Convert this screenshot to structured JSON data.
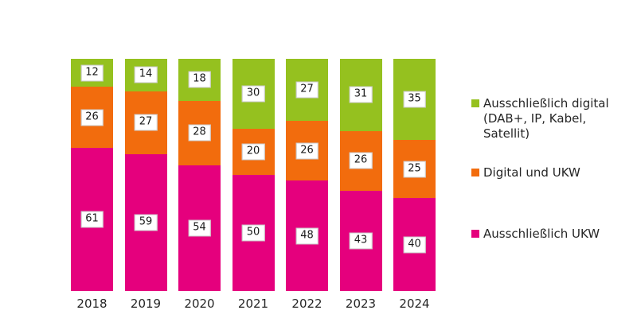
{
  "chart_data": {
    "type": "bar",
    "stacked": true,
    "orientation": "vertical",
    "categories": [
      "2018",
      "2019",
      "2020",
      "2021",
      "2022",
      "2023",
      "2024"
    ],
    "series": [
      {
        "name": "Ausschließlich digital (DAB+, IP, Kabel, Satellit)",
        "color": "#95C11F",
        "values": [
          12,
          14,
          18,
          30,
          27,
          31,
          35
        ]
      },
      {
        "name": "Digital und UKW",
        "color": "#F26C0D",
        "values": [
          26,
          27,
          28,
          20,
          26,
          26,
          25
        ]
      },
      {
        "name": "Ausschließlich UKW",
        "color": "#E5007D",
        "values": [
          61,
          59,
          54,
          50,
          48,
          43,
          40
        ]
      }
    ],
    "title": "",
    "xlabel": "",
    "ylabel": "",
    "ylim": [
      0,
      100
    ],
    "grid": false,
    "value_labels": true,
    "legend_position": "right"
  },
  "legend": {
    "items": [
      {
        "label": "Ausschließlich digital\n(DAB+, IP, Kabel,\nSatellit)",
        "color": "#95C11F"
      },
      {
        "label": "Digital und UKW",
        "color": "#F26C0D"
      },
      {
        "label": "Ausschließlich UKW",
        "color": "#E5007D"
      }
    ]
  }
}
